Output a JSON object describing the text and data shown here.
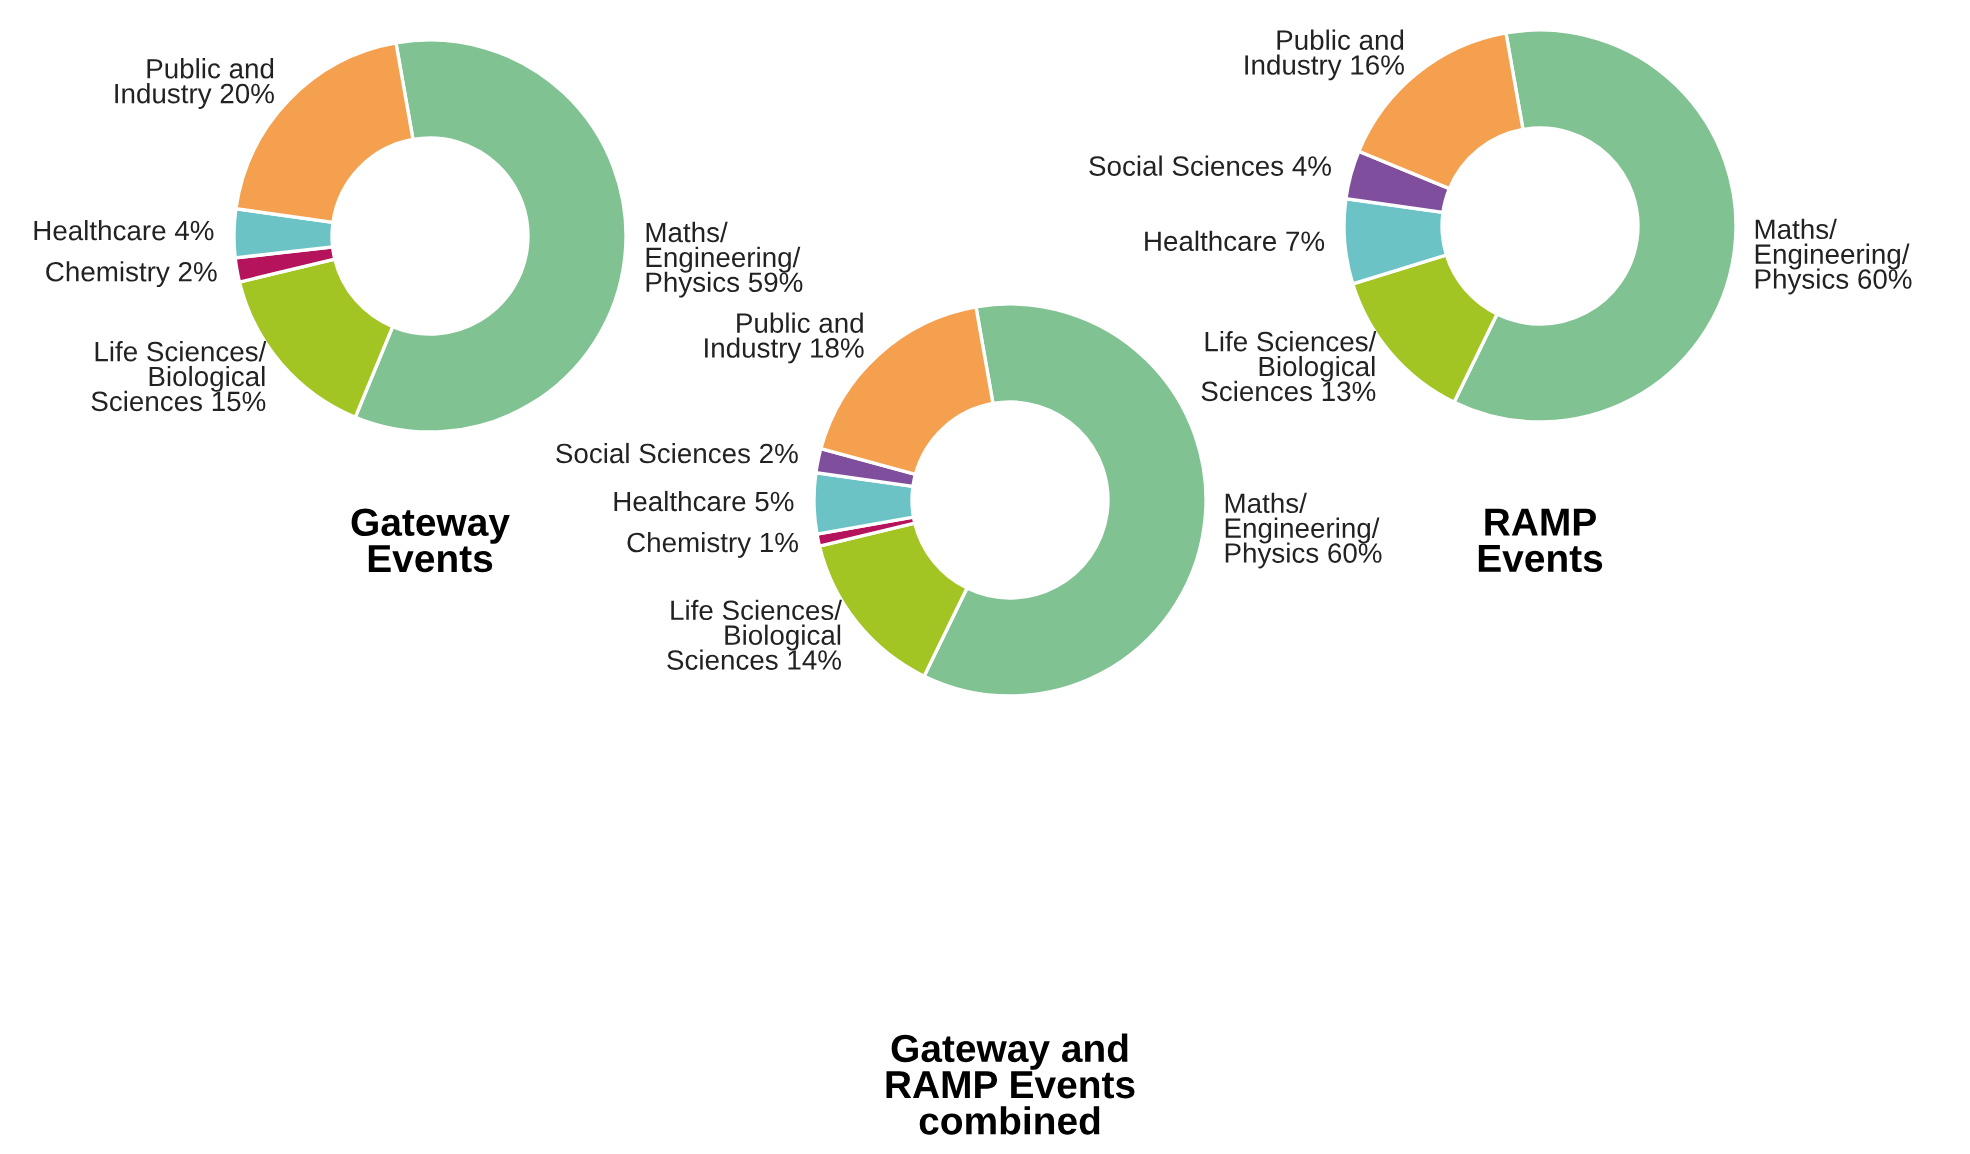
{
  "chart_data": [
    {
      "type": "donut",
      "title": "Gateway\nEvents",
      "categories": [
        "Maths/\nEngineering/\nPhysics 59%",
        "Life Sciences/\nBiological\nSciences 15%",
        "Chemistry 2%",
        "Healthcare 4%",
        "Public and\nIndustry 20%"
      ],
      "values": [
        59,
        15,
        2,
        4,
        20
      ],
      "colors": [
        "#80c291",
        "#a2c523",
        "#b5135c",
        "#6cc3c6",
        "#f4a04f"
      ]
    },
    {
      "type": "donut",
      "title": "RAMP\nEvents",
      "categories": [
        "Maths/\nEngineering/\nPhysics 60%",
        "Life Sciences/\nBiological\nSciences 13%",
        "Healthcare 7%",
        "Social Sciences 4%",
        "Public and\nIndustry 16%"
      ],
      "values": [
        60,
        13,
        7,
        4,
        16
      ],
      "colors": [
        "#80c291",
        "#a2c523",
        "#6cc3c6",
        "#7f4f9e",
        "#f4a04f"
      ]
    },
    {
      "type": "donut",
      "title": "Gateway and\nRAMP Events\ncombined",
      "categories": [
        "Maths/\nEngineering/\nPhysics 60%",
        "Life Sciences/\nBiological\nSciences 14%",
        "Chemistry 1%",
        "Healthcare 5%",
        "Social Sciences 2%",
        "Public and\nIndustry 18%"
      ],
      "values": [
        60,
        14,
        1,
        5,
        2,
        18
      ],
      "colors": [
        "#80c291",
        "#a2c523",
        "#b5135c",
        "#6cc3c6",
        "#7f4f9e",
        "#f4a04f"
      ]
    }
  ]
}
